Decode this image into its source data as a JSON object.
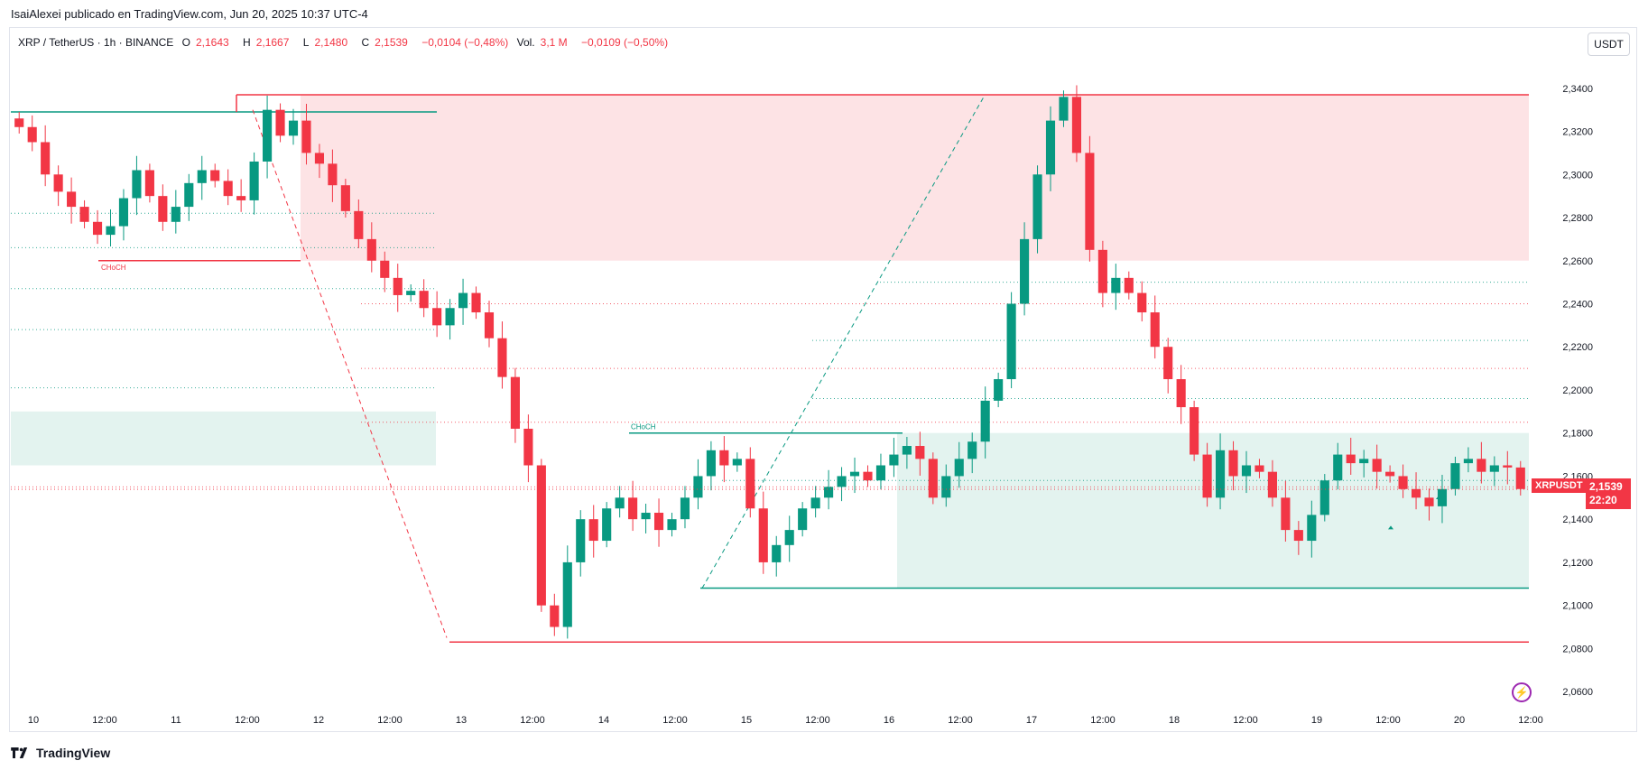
{
  "header": {
    "published": "IsaiAlexei publicado en TradingView.com, Jun 20, 2025 10:37 UTC-4"
  },
  "legend": {
    "symbol": "XRP / TetherUS · 1h · BINANCE",
    "open_label": "O",
    "open": "2,1643",
    "high_label": "H",
    "high": "2,1667",
    "low_label": "L",
    "low": "2,1480",
    "close_label": "C",
    "close": "2,1539",
    "change": "−0,0104 (−0,48%)",
    "vol_label": "Vol.",
    "vol": "3,1 M",
    "vol_change": "−0,0109 (−0,50%)"
  },
  "currency_button": "USDT",
  "current_price": {
    "ticker": "XRPUSDT",
    "price": "2,1539",
    "countdown": "22:20"
  },
  "footer": {
    "brand": "TradingView"
  },
  "colors": {
    "up": "#089981",
    "down": "#f23645",
    "grid": "#f0f3fa",
    "text": "#131722"
  },
  "chart_data": {
    "type": "candlestick",
    "symbol": "XRPUSDT",
    "interval": "1h",
    "ylim": [
      2.05,
      2.355
    ],
    "y_ticks": [
      "2,3400",
      "2,3200",
      "2,3000",
      "2,2800",
      "2,2600",
      "2,2400",
      "2,2200",
      "2,2000",
      "2,1800",
      "2,1600",
      "2,1400",
      "2,1200",
      "2,1000",
      "2,0800",
      "2,0600"
    ],
    "x_ticks": [
      "10",
      "12:00",
      "11",
      "12:00",
      "12",
      "12:00",
      "13",
      "12:00",
      "14",
      "12:00",
      "15",
      "12:00",
      "16",
      "12:00",
      "17",
      "12:00",
      "18",
      "12:00",
      "19",
      "12:00",
      "20",
      "12:00"
    ],
    "close_series": [
      2.322,
      2.315,
      2.3,
      2.292,
      2.285,
      2.278,
      2.272,
      2.276,
      2.289,
      2.302,
      2.29,
      2.278,
      2.285,
      2.296,
      2.302,
      2.297,
      2.29,
      2.288,
      2.306,
      2.33,
      2.318,
      2.325,
      2.31,
      2.305,
      2.295,
      2.283,
      2.27,
      2.26,
      2.252,
      2.244,
      2.246,
      2.238,
      2.23,
      2.238,
      2.245,
      2.236,
      2.224,
      2.206,
      2.182,
      2.165,
      2.1,
      2.09,
      2.12,
      2.14,
      2.13,
      2.145,
      2.15,
      2.14,
      2.143,
      2.135,
      2.14,
      2.15,
      2.16,
      2.172,
      2.165,
      2.168,
      2.145,
      2.12,
      2.128,
      2.135,
      2.145,
      2.15,
      2.155,
      2.16,
      2.162,
      2.158,
      2.165,
      2.17,
      2.174,
      2.168,
      2.15,
      2.16,
      2.168,
      2.176,
      2.195,
      2.205,
      2.24,
      2.27,
      2.3,
      2.325,
      2.336,
      2.31,
      2.265,
      2.245,
      2.252,
      2.245,
      2.236,
      2.22,
      2.205,
      2.192,
      2.17,
      2.15,
      2.172,
      2.16,
      2.165,
      2.162,
      2.15,
      2.135,
      2.13,
      2.142,
      2.158,
      2.17,
      2.166,
      2.168,
      2.162,
      2.16,
      2.154,
      2.15,
      2.146,
      2.154,
      2.166,
      2.168,
      2.162,
      2.165,
      2.164,
      2.154
    ],
    "zones": [
      {
        "name": "supply-zone",
        "from": 2.26,
        "to": 2.337,
        "color": "#fde3e5"
      },
      {
        "name": "demand-zone-left",
        "from": 2.165,
        "to": 2.19,
        "color": "#e3f3ef"
      },
      {
        "name": "demand-zone-right",
        "from": 2.108,
        "to": 2.18,
        "color": "#e3f3ef"
      }
    ],
    "levels": [
      {
        "name": "high-line",
        "value": 2.337,
        "color": "#f23645"
      },
      {
        "name": "low-line",
        "value": 2.083,
        "color": "#f23645"
      },
      {
        "name": "mid-low-line",
        "value": 2.108,
        "color": "#089981"
      },
      {
        "name": "choch-top-green",
        "value": 2.329,
        "color": "#089981"
      },
      {
        "name": "choch-red",
        "value": 2.26,
        "color": "#f23645"
      },
      {
        "name": "choch-green",
        "value": 2.18,
        "color": "#089981"
      }
    ],
    "annotations": [
      "CHoCH",
      "CHoCH"
    ]
  }
}
